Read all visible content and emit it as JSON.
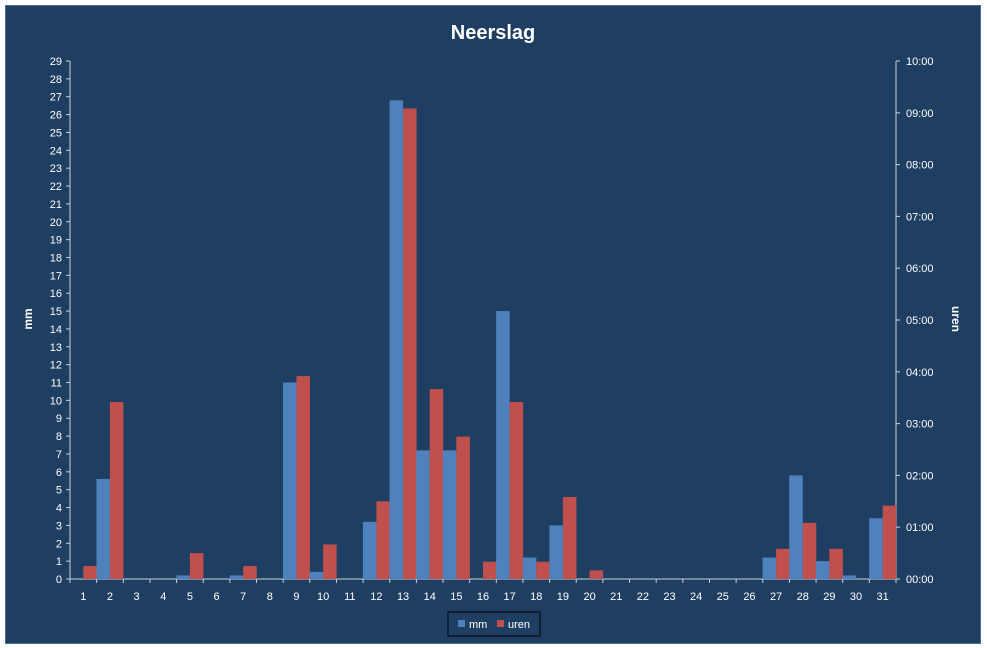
{
  "chart_data": {
    "type": "bar",
    "title": "Neerslag",
    "ylabel": "mm",
    "y2label": "uren",
    "categories": [
      "1",
      "2",
      "3",
      "4",
      "5",
      "6",
      "7",
      "8",
      "9",
      "10",
      "11",
      "12",
      "13",
      "14",
      "15",
      "16",
      "17",
      "18",
      "19",
      "20",
      "21",
      "22",
      "23",
      "24",
      "25",
      "26",
      "27",
      "28",
      "29",
      "30",
      "31"
    ],
    "ylim": [
      0,
      29
    ],
    "y2lim": [
      0,
      600
    ],
    "y2ticks": [
      "00:00",
      "01:00",
      "02:00",
      "03:00",
      "04:00",
      "05:00",
      "06:00",
      "07:00",
      "08:00",
      "09:00",
      "10:00"
    ],
    "series": [
      {
        "name": "mm",
        "axis": "left",
        "color": "#4f81bd",
        "values": [
          0,
          5.6,
          0,
          0,
          0.2,
          0,
          0.2,
          0,
          11,
          0.4,
          0,
          3.2,
          26.8,
          7.2,
          7.2,
          0,
          15,
          1.2,
          3,
          0,
          0,
          0,
          0,
          0,
          0,
          0,
          1.2,
          5.8,
          1,
          0.2,
          3.4
        ]
      },
      {
        "name": "uren",
        "axis": "right",
        "unit": "minutes",
        "color": "#c0504d",
        "values": [
          15,
          205,
          0,
          0,
          30,
          0,
          15,
          0,
          235,
          40,
          0,
          90,
          545,
          220,
          165,
          20,
          205,
          20,
          95,
          10,
          0,
          0,
          0,
          0,
          0,
          0,
          35,
          65,
          35,
          0,
          85
        ]
      }
    ],
    "legend": {
      "position": "bottom",
      "items": [
        "mm",
        "uren"
      ]
    },
    "grid": false
  }
}
